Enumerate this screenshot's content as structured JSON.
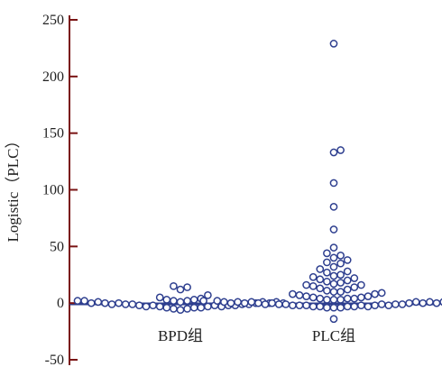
{
  "chart_data": {
    "type": "scatter",
    "title": "",
    "xlabel": "",
    "ylabel": "Logistic（PLC）",
    "categories": [
      "BPD组",
      "PLC组"
    ],
    "ylim": [
      -50,
      250
    ],
    "yticks": [
      -50,
      0,
      50,
      100,
      150,
      200,
      250
    ],
    "grid": false,
    "reference_line": 0,
    "colors": {
      "points": "#2e3f8f",
      "axis": "#7a1414",
      "reference_line": "#2e3f8f"
    },
    "series": [
      {
        "category": "BPD组",
        "values": [
          -6,
          -5,
          -5,
          -4,
          -4,
          -4,
          -3,
          -3,
          -3,
          -3,
          -2,
          -2,
          -2,
          -2,
          -2,
          -1,
          -1,
          -1,
          -1,
          -1,
          0,
          0,
          0,
          0,
          0,
          0,
          1,
          1,
          1,
          1,
          2,
          2,
          2,
          2,
          3,
          3,
          4,
          5,
          7,
          12,
          14,
          15
        ]
      },
      {
        "category": "PLC组",
        "values": [
          -14,
          -4,
          -4,
          -4,
          -3,
          -3,
          -3,
          -3,
          -3,
          -2,
          -2,
          -2,
          -2,
          -2,
          -2,
          -1,
          -1,
          -1,
          -1,
          -1,
          -1,
          0,
          0,
          0,
          0,
          0,
          0,
          0,
          1,
          1,
          1,
          1,
          1,
          1,
          2,
          2,
          2,
          2,
          2,
          3,
          3,
          3,
          4,
          4,
          4,
          5,
          5,
          6,
          6,
          7,
          8,
          8,
          9,
          10,
          10,
          11,
          12,
          13,
          14,
          15,
          16,
          16,
          17,
          18,
          19,
          20,
          21,
          22,
          23,
          24,
          25,
          27,
          28,
          30,
          32,
          35,
          36,
          38,
          40,
          42,
          44,
          49,
          65,
          85,
          106,
          133,
          135,
          229
        ]
      }
    ]
  }
}
